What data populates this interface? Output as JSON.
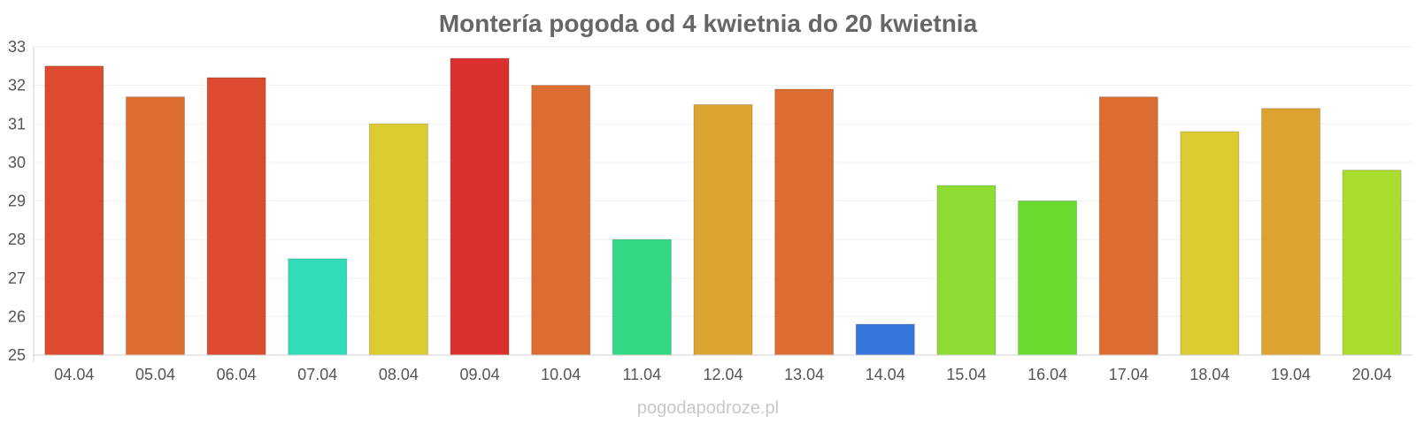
{
  "chart_data": {
    "type": "bar",
    "title": "Montería pogoda od 4 kwietnia do 20 kwietnia",
    "xlabel": "",
    "ylabel": "",
    "ylim": [
      25,
      33
    ],
    "yticks": [
      "25",
      "26",
      "27",
      "28",
      "29",
      "30",
      "31",
      "32",
      "33"
    ],
    "grid": true,
    "categories": [
      "04.04",
      "05.04",
      "06.04",
      "07.04",
      "08.04",
      "09.04",
      "10.04",
      "11.04",
      "12.04",
      "13.04",
      "14.04",
      "15.04",
      "16.04",
      "17.04",
      "18.04",
      "19.04",
      "20.04"
    ],
    "values": [
      32.5,
      31.7,
      32.2,
      27.5,
      31.0,
      32.7,
      32.0,
      28.0,
      31.5,
      31.9,
      25.8,
      29.4,
      29.0,
      31.7,
      30.8,
      31.4,
      29.8
    ],
    "colors": [
      "#dc4b30",
      "#dc6d30",
      "#dc4b30",
      "#33dcb8",
      "#dccb30",
      "#dc3030",
      "#dc6d30",
      "#33d984",
      "#dca330",
      "#dc6d30",
      "#3777dc",
      "#8edc33",
      "#6adc30",
      "#dc6d30",
      "#dccb30",
      "#dca330",
      "#acdc30"
    ]
  },
  "watermark": "pogodapodroze.pl"
}
